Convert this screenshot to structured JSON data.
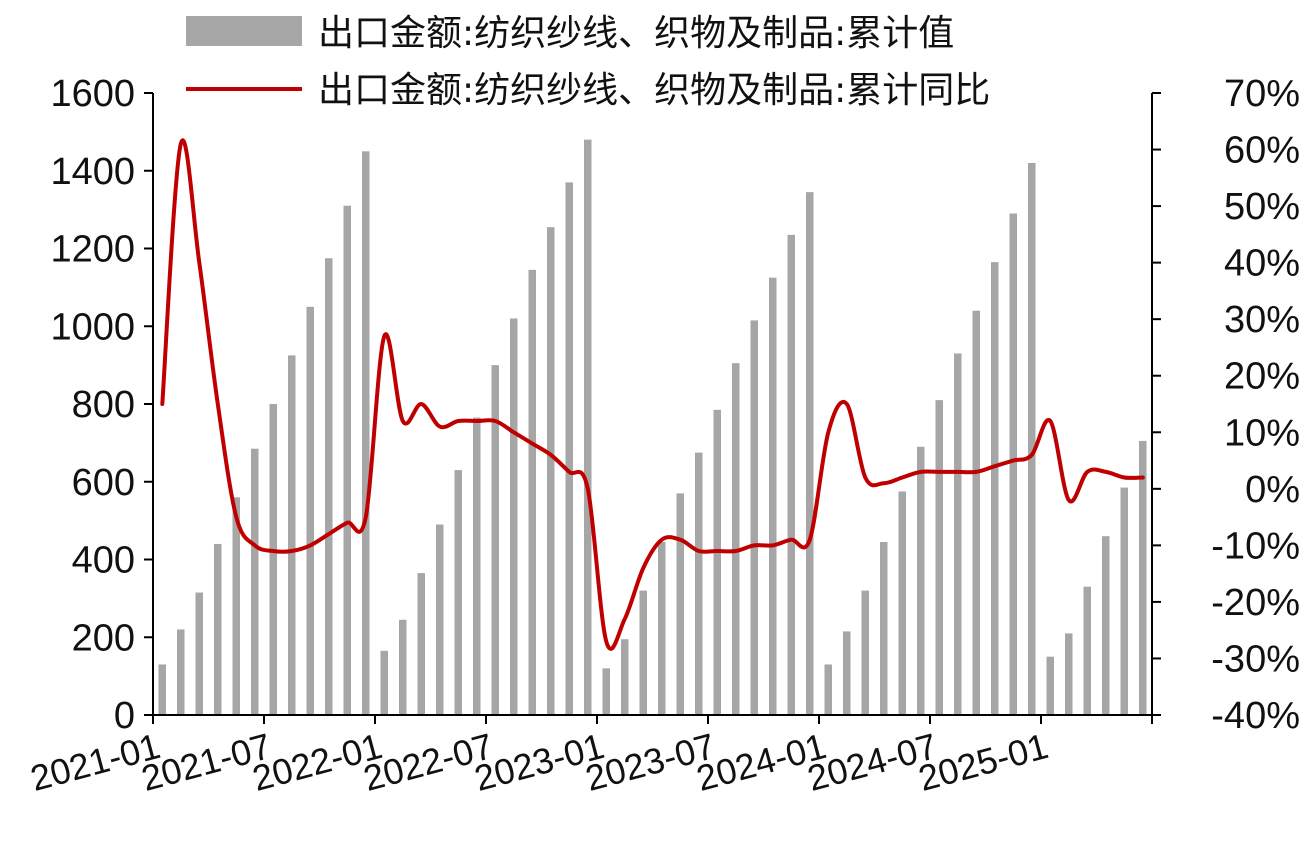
{
  "chart_data": {
    "type": "bar+line",
    "legend": {
      "placement": "top",
      "items": [
        {
          "label": "出口金额:纺织纱线、织物及制品:累计值",
          "kind": "bar",
          "color": "#a6a6a6"
        },
        {
          "label": "出口金额:纺织纱线、织物及制品:累计同比",
          "kind": "line",
          "color": "#c00000"
        }
      ]
    },
    "x_tick_labels": [
      "2021-01",
      "2021-07",
      "2022-01",
      "2022-07",
      "2023-01",
      "2023-07",
      "2024-01",
      "2024-07",
      "2025-01"
    ],
    "left_axis": {
      "range": [
        0,
        1600
      ],
      "ticks": [
        "0",
        "200",
        "400",
        "600",
        "800",
        "1000",
        "1200",
        "1400",
        "1600"
      ]
    },
    "right_axis": {
      "range": [
        -40,
        70
      ],
      "ticks": [
        "-40%",
        "-30%",
        "-20%",
        "-10%",
        "0%",
        "10%",
        "20%",
        "30%",
        "40%",
        "50%",
        "60%",
        "70%"
      ]
    },
    "months": [
      "2021-01",
      "2021-02",
      "2021-03",
      "2021-04",
      "2021-05",
      "2021-06",
      "2021-07",
      "2021-08",
      "2021-09",
      "2021-10",
      "2021-11",
      "2021-12",
      "2022-01",
      "2022-02",
      "2022-03",
      "2022-04",
      "2022-05",
      "2022-06",
      "2022-07",
      "2022-08",
      "2022-09",
      "2022-10",
      "2022-11",
      "2022-12",
      "2023-01",
      "2023-02",
      "2023-03",
      "2023-04",
      "2023-05",
      "2023-06",
      "2023-07",
      "2023-08",
      "2023-09",
      "2023-10",
      "2023-11",
      "2023-12",
      "2024-01",
      "2024-02",
      "2024-03",
      "2024-04",
      "2024-05",
      "2024-06",
      "2024-07",
      "2024-08",
      "2024-09",
      "2024-10",
      "2024-11",
      "2024-12",
      "2025-01",
      "2025-02",
      "2025-03",
      "2025-04",
      "2025-05",
      "2025-06"
    ],
    "series": [
      {
        "name": "出口金额:纺织纱线、织物及制品:累计值",
        "type": "bar",
        "axis": "left",
        "color": "#a6a6a6",
        "values": [
          130,
          220,
          315,
          440,
          560,
          685,
          800,
          925,
          1050,
          1175,
          1310,
          1450,
          165,
          245,
          365,
          490,
          630,
          765,
          900,
          1020,
          1145,
          1255,
          1370,
          1480,
          120,
          195,
          320,
          445,
          570,
          675,
          785,
          905,
          1015,
          1125,
          1235,
          1345,
          130,
          215,
          320,
          445,
          575,
          690,
          810,
          930,
          1040,
          1165,
          1290,
          1420,
          150,
          210,
          330,
          460,
          585,
          705
        ]
      },
      {
        "name": "出口金额:纺织纱线、织物及制品:累计同比",
        "type": "line",
        "axis": "right",
        "color": "#c00000",
        "values": [
          15,
          61,
          40,
          15,
          -5,
          -10,
          -11,
          -11,
          -10,
          -8,
          -6,
          -5,
          27,
          12,
          15,
          11,
          12,
          12,
          12,
          10,
          8,
          6,
          3,
          0,
          -27,
          -23,
          -14,
          -9,
          -9,
          -11,
          -11,
          -11,
          -10,
          -10,
          -9,
          -9,
          10,
          15,
          2,
          1,
          2,
          3,
          3,
          3,
          3,
          4,
          5,
          6,
          12,
          -2,
          3,
          3,
          2,
          2
        ]
      }
    ]
  }
}
